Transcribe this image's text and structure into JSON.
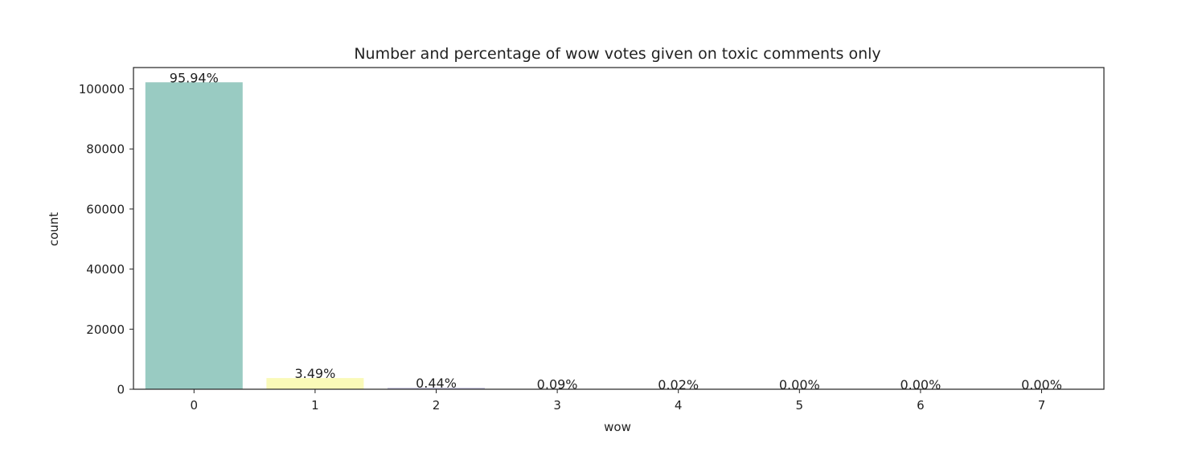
{
  "chart_data": {
    "type": "bar",
    "title": "Number and percentage of wow votes given on toxic comments only",
    "xlabel": "wow",
    "ylabel": "count",
    "categories": [
      "0",
      "1",
      "2",
      "3",
      "4",
      "5",
      "6",
      "7"
    ],
    "values": [
      102200,
      3720,
      470,
      96,
      21,
      3,
      1,
      1
    ],
    "labels": [
      "95.94%",
      "3.49%",
      "0.44%",
      "0.09%",
      "0.02%",
      "0.00%",
      "0.00%",
      "0.00%"
    ],
    "colors": [
      "#99cbc2",
      "#fafab8",
      "#c0bedb",
      "#fa8072",
      "#80b1d3",
      "#fdb462",
      "#b3de69",
      "#fccde5"
    ],
    "ylim": [
      0,
      107100
    ],
    "yticks": [
      0,
      20000,
      40000,
      60000,
      80000,
      100000
    ],
    "grid": false,
    "legend": "none"
  }
}
